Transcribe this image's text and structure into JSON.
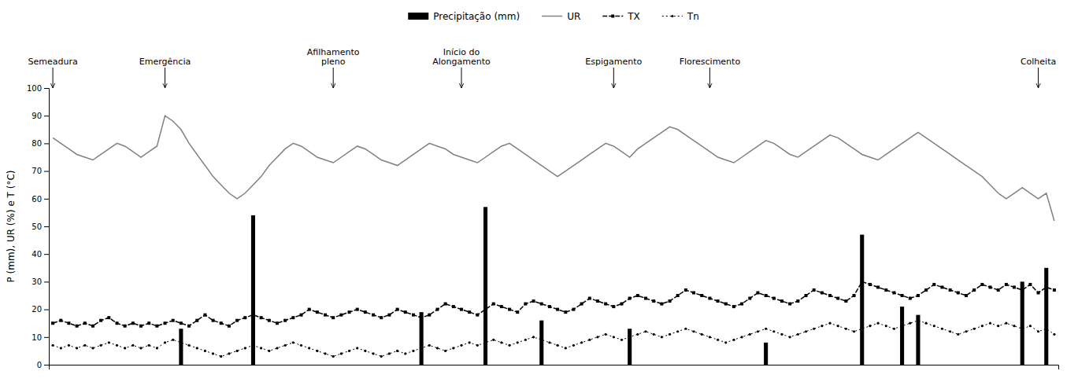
{
  "chart_data": {
    "type": "bar",
    "ylabel": "P (mm), UR (%) e T (°C)",
    "x": [
      1,
      2,
      3,
      4,
      5,
      6,
      7,
      8,
      9,
      10,
      11,
      12,
      13,
      14,
      15,
      16,
      17,
      18,
      19,
      20,
      21,
      22,
      23,
      24,
      25,
      26,
      27,
      28,
      29,
      30,
      31,
      32,
      33,
      34,
      35,
      36,
      37,
      38,
      39,
      40,
      41,
      42,
      43,
      44,
      45,
      46,
      47,
      48,
      49,
      50,
      51,
      52,
      53,
      54,
      55,
      56,
      57,
      58,
      59,
      60,
      61,
      62,
      63,
      64,
      65,
      66,
      67,
      68,
      69,
      70,
      71,
      72,
      73,
      74,
      75,
      76,
      77,
      78,
      79,
      80,
      81,
      82,
      83,
      84,
      85,
      86,
      87,
      88,
      89,
      90,
      91,
      92,
      93,
      94,
      95,
      96,
      97,
      98,
      99,
      100,
      101,
      102,
      103,
      104,
      105,
      106,
      107,
      108,
      109,
      110,
      111,
      112,
      113,
      114,
      115,
      116,
      117,
      118,
      119,
      120,
      121,
      122,
      123,
      124,
      125,
      126
    ],
    "xlim": [
      0.5,
      126.5
    ],
    "xticks": [],
    "ylim": [
      0,
      100
    ],
    "yticks": [
      0,
      10,
      20,
      30,
      40,
      50,
      60,
      70,
      80,
      90,
      100
    ],
    "grid": false,
    "legend": "top",
    "tick_labels": "y",
    "series": [
      {
        "name": "Precipitação (mm)",
        "type": "bar",
        "color": "#000000",
        "values": [
          0,
          0,
          0,
          0,
          0,
          0,
          0,
          0,
          0,
          0,
          0,
          0,
          0,
          0,
          0,
          0,
          13,
          0,
          0,
          0,
          0,
          0,
          0,
          0,
          0,
          54,
          0,
          0,
          0,
          0,
          0,
          0,
          0,
          0,
          0,
          0,
          0,
          0,
          0,
          0,
          0,
          0,
          0,
          0,
          0,
          0,
          19,
          0,
          0,
          0,
          0,
          0,
          0,
          0,
          57,
          0,
          0,
          0,
          0,
          0,
          0,
          16,
          0,
          0,
          0,
          0,
          0,
          0,
          0,
          0,
          0,
          0,
          13,
          0,
          0,
          0,
          0,
          0,
          0,
          0,
          0,
          0,
          0,
          0,
          0,
          0,
          0,
          0,
          0,
          8,
          0,
          0,
          0,
          0,
          0,
          0,
          0,
          0,
          0,
          0,
          0,
          47,
          0,
          0,
          0,
          0,
          21,
          0,
          18,
          0,
          0,
          0,
          0,
          0,
          0,
          0,
          0,
          0,
          0,
          0,
          0,
          30,
          0,
          0,
          35,
          0
        ]
      },
      {
        "name": "UR",
        "type": "line",
        "color": "#808080",
        "line_style": "solid",
        "values": [
          82,
          80,
          78,
          76,
          75,
          74,
          76,
          78,
          80,
          79,
          77,
          75,
          77,
          79,
          90,
          88,
          85,
          80,
          76,
          72,
          68,
          65,
          62,
          60,
          62,
          65,
          68,
          72,
          75,
          78,
          80,
          79,
          77,
          75,
          74,
          73,
          75,
          77,
          79,
          78,
          76,
          74,
          73,
          72,
          74,
          76,
          78,
          80,
          79,
          78,
          76,
          75,
          74,
          73,
          75,
          77,
          79,
          80,
          78,
          76,
          74,
          72,
          70,
          68,
          70,
          72,
          74,
          76,
          78,
          80,
          79,
          77,
          75,
          78,
          80,
          82,
          84,
          86,
          85,
          83,
          81,
          79,
          77,
          75,
          74,
          73,
          75,
          77,
          79,
          81,
          80,
          78,
          76,
          75,
          77,
          79,
          81,
          83,
          82,
          80,
          78,
          76,
          75,
          74,
          76,
          78,
          80,
          82,
          84,
          82,
          80,
          78,
          76,
          74,
          72,
          70,
          68,
          65,
          62,
          60,
          62,
          64,
          62,
          60,
          62,
          52
        ]
      },
      {
        "name": "TX",
        "type": "line",
        "color": "#000000",
        "line_style": "dashed",
        "marker": "square",
        "values": [
          15,
          16,
          15,
          14,
          15,
          14,
          16,
          17,
          15,
          14,
          15,
          14,
          15,
          14,
          15,
          16,
          15,
          14,
          16,
          18,
          16,
          15,
          14,
          16,
          17,
          18,
          17,
          16,
          15,
          16,
          17,
          18,
          20,
          19,
          18,
          17,
          18,
          19,
          20,
          19,
          18,
          17,
          18,
          20,
          19,
          18,
          17,
          18,
          20,
          22,
          21,
          20,
          19,
          18,
          20,
          22,
          21,
          20,
          19,
          22,
          23,
          22,
          21,
          20,
          19,
          20,
          22,
          24,
          23,
          22,
          21,
          22,
          24,
          25,
          24,
          23,
          22,
          23,
          25,
          27,
          26,
          25,
          24,
          23,
          22,
          21,
          22,
          24,
          26,
          25,
          24,
          23,
          22,
          23,
          25,
          27,
          26,
          25,
          24,
          23,
          25,
          30,
          29,
          28,
          27,
          26,
          25,
          24,
          25,
          27,
          29,
          28,
          27,
          26,
          25,
          27,
          29,
          28,
          27,
          29,
          28,
          27,
          29,
          26,
          28,
          27
        ]
      },
      {
        "name": "Tn",
        "type": "line",
        "color": "#000000",
        "line_style": "dotted",
        "marker": "circle",
        "values": [
          7,
          6,
          7,
          6,
          7,
          6,
          7,
          8,
          7,
          6,
          7,
          6,
          7,
          6,
          8,
          9,
          8,
          7,
          6,
          5,
          4,
          3,
          4,
          5,
          6,
          7,
          6,
          5,
          6,
          7,
          8,
          7,
          6,
          5,
          4,
          3,
          4,
          5,
          6,
          5,
          4,
          3,
          4,
          5,
          4,
          5,
          6,
          7,
          6,
          5,
          6,
          7,
          8,
          7,
          8,
          9,
          8,
          7,
          8,
          9,
          10,
          9,
          8,
          7,
          6,
          7,
          8,
          9,
          10,
          11,
          10,
          9,
          10,
          11,
          12,
          11,
          10,
          11,
          12,
          13,
          12,
          11,
          10,
          9,
          8,
          9,
          10,
          11,
          12,
          13,
          12,
          11,
          10,
          11,
          12,
          13,
          14,
          15,
          14,
          13,
          12,
          13,
          14,
          15,
          14,
          13,
          14,
          15,
          16,
          15,
          14,
          13,
          12,
          11,
          12,
          13,
          14,
          15,
          14,
          15,
          14,
          13,
          14,
          12,
          13,
          11
        ]
      }
    ],
    "annotations": [
      {
        "text": "Semeadura",
        "x": 1,
        "y": 100
      },
      {
        "text": "Emergência",
        "x": 15,
        "y": 100
      },
      {
        "text": "Afilhamento\npleno",
        "x": 36,
        "y": 100
      },
      {
        "text": "Início do\nAlongamento",
        "x": 52,
        "y": 100
      },
      {
        "text": "Espigamento",
        "x": 71,
        "y": 100
      },
      {
        "text": "Florescimento",
        "x": 83,
        "y": 100
      },
      {
        "text": "Colheita",
        "x": 124,
        "y": 100
      }
    ]
  }
}
